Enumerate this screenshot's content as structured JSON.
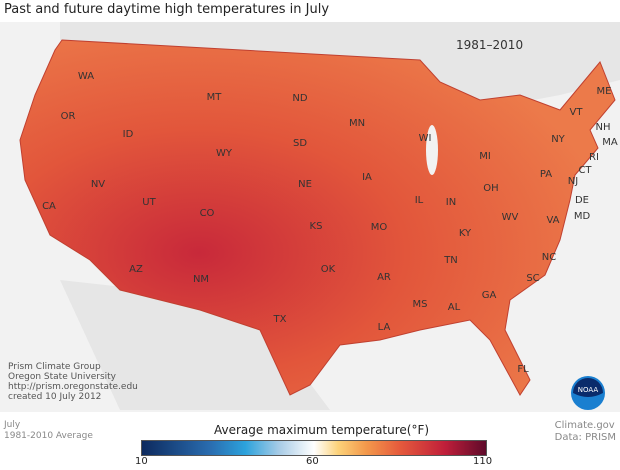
{
  "title": "Past and future daytime high temperatures in July",
  "period": "1981–2010",
  "states": [
    "WA",
    "OR",
    "ID",
    "MT",
    "WY",
    "NV",
    "UT",
    "CA",
    "CO",
    "AZ",
    "NM",
    "ND",
    "SD",
    "NE",
    "KS",
    "OK",
    "TX",
    "MN",
    "IA",
    "MO",
    "AR",
    "LA",
    "WI",
    "IL",
    "MS",
    "MI",
    "IN",
    "KY",
    "TN",
    "AL",
    "OH",
    "GA",
    "FL",
    "WV",
    "VA",
    "NC",
    "SC",
    "PA",
    "NY",
    "VT",
    "ME",
    "NH",
    "MA",
    "RI",
    "CT",
    "NJ",
    "DE",
    "MD"
  ],
  "credits": [
    "Prism Climate Group",
    "Oregon State University",
    "http://prism.oregonstate.edu",
    "created 10 July 2012"
  ],
  "bottom_left": [
    "July",
    "1981-2010 Average"
  ],
  "bottom_right": [
    "Climate.gov",
    "Data: PRISM"
  ],
  "legend": {
    "title": "Average maximum temperature(°F)",
    "min": "10",
    "mid": "60",
    "max": "110",
    "colors": [
      "#0d2a5e",
      "#2ca2dc",
      "#ffffff",
      "#f39a4c",
      "#c01f3a",
      "#5e0a2a"
    ]
  },
  "logo": "NOAA"
}
